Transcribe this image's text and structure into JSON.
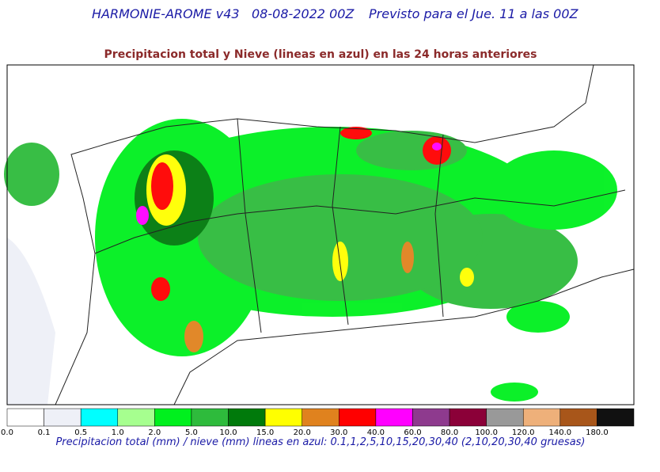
{
  "header": {
    "model": "HARMONIE-AROME v43",
    "run": "08-08-2022 00Z",
    "forecast": "Previsto para el Jue. 11 a las 00Z"
  },
  "subtitle": "Precipitacion total y Nieve (lineas en azul) en las 24 horas anteriores",
  "legend": {
    "bins": [
      {
        "label": "0.0",
        "color": "#ffffff"
      },
      {
        "label": "0.1",
        "color": "#eef0f7"
      },
      {
        "label": "0.5",
        "color": "#00ffff"
      },
      {
        "label": "1.0",
        "color": "#a6ff8f"
      },
      {
        "label": "2.0",
        "color": "#00f01e"
      },
      {
        "label": "5.0",
        "color": "#2ebb3c"
      },
      {
        "label": "10.0",
        "color": "#007a0b"
      },
      {
        "label": "15.0",
        "color": "#ffff00"
      },
      {
        "label": "20.0",
        "color": "#e0821e"
      },
      {
        "label": "30.0",
        "color": "#ff0000"
      },
      {
        "label": "40.0",
        "color": "#ff00ff"
      },
      {
        "label": "60.0",
        "color": "#8e3a8e"
      },
      {
        "label": "80.0",
        "color": "#8b0038"
      },
      {
        "label": "100.0",
        "color": "#999999"
      },
      {
        "label": "120.0",
        "color": "#eeb07a"
      },
      {
        "label": "140.0",
        "color": "#a8561a"
      },
      {
        "label": "180.0",
        "color": "#111111"
      }
    ]
  },
  "caption": "Precipitacion total (mm) / nieve (mm) lineas en azul: 0.1,1,2,5,10,15,20,30,40  (2,10,20,30,40 gruesas)"
}
